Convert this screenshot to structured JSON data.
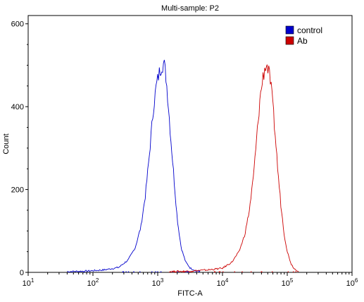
{
  "chart_data": {
    "type": "line",
    "title": "Multi-sample: P2",
    "xlabel": "FITC-A",
    "ylabel": "Count",
    "x_scale": "log",
    "xlim": [
      10,
      1000000
    ],
    "ylim": [
      0,
      620
    ],
    "x_ticks": [
      {
        "value": 10,
        "base": "10",
        "exp": "1"
      },
      {
        "value": 100,
        "base": "10",
        "exp": "2"
      },
      {
        "value": 1000,
        "base": "10",
        "exp": "3"
      },
      {
        "value": 10000,
        "base": "10",
        "exp": "4"
      },
      {
        "value": 100000,
        "base": "10",
        "exp": "5"
      },
      {
        "value": 1000000,
        "base": "10",
        "exp": "6"
      }
    ],
    "y_ticks": [
      {
        "value": 0,
        "label": "0"
      },
      {
        "value": 200,
        "label": "200"
      },
      {
        "value": 400,
        "label": "400"
      },
      {
        "value": 600,
        "label": "600"
      }
    ],
    "grid": false,
    "legend_position": "top-right",
    "series": [
      {
        "name": "control",
        "color": "#0000cc",
        "x": [
          40,
          80,
          150,
          250,
          350,
          450,
          550,
          650,
          750,
          850,
          950,
          1050,
          1150,
          1250,
          1350,
          1450,
          1600,
          1800,
          2000,
          2300,
          2700,
          3200,
          3800,
          4500
        ],
        "y": [
          2,
          3,
          6,
          12,
          30,
          60,
          110,
          190,
          290,
          390,
          450,
          480,
          500,
          505,
          470,
          410,
          320,
          220,
          130,
          60,
          25,
          10,
          5,
          2
        ]
      },
      {
        "name": "Ab",
        "color": "#cc0000",
        "x": [
          1500,
          3000,
          6000,
          10000,
          14000,
          18000,
          22000,
          26000,
          30000,
          34000,
          38000,
          42000,
          46000,
          50000,
          55000,
          60000,
          66000,
          72000,
          80000,
          90000,
          100000,
          115000,
          130000,
          150000
        ],
        "y": [
          2,
          3,
          6,
          10,
          25,
          50,
          90,
          150,
          230,
          330,
          420,
          470,
          500,
          495,
          460,
          400,
          320,
          240,
          160,
          90,
          50,
          20,
          8,
          3
        ]
      }
    ]
  }
}
